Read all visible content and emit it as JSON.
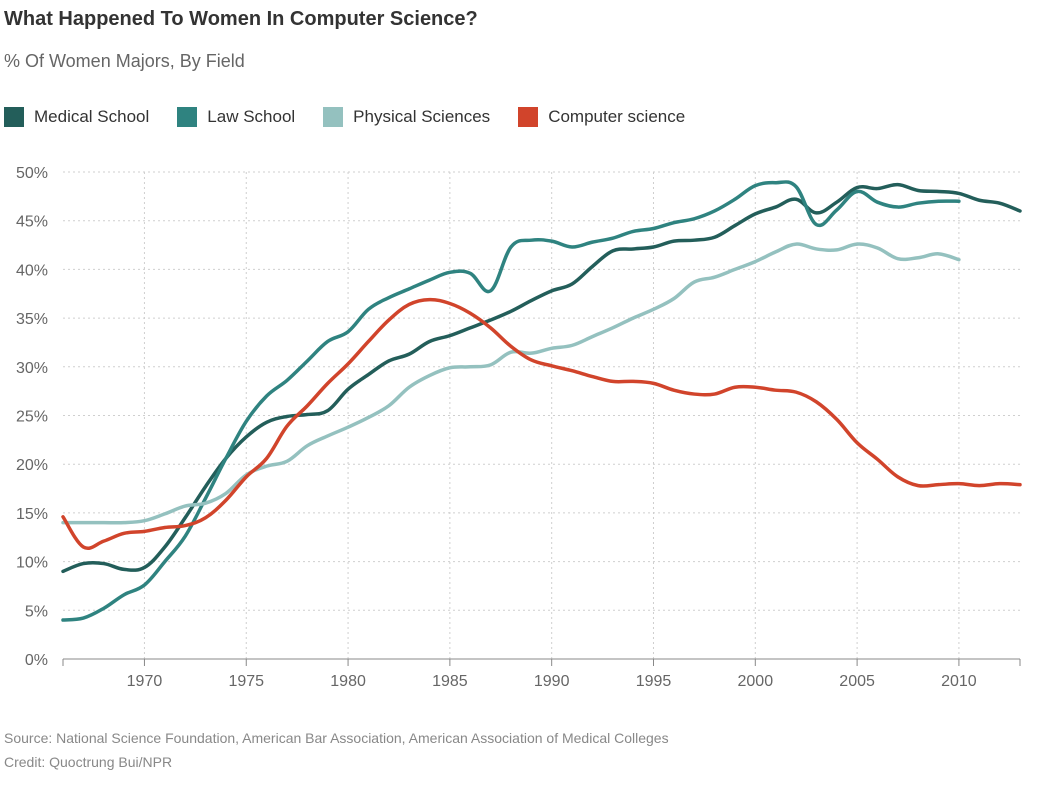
{
  "chart_data": {
    "type": "line",
    "title": "What Happened To Women In Computer Science?",
    "subtitle": "% Of Women Majors, By Field",
    "xlim": [
      1966,
      2013
    ],
    "ylim": [
      0,
      50
    ],
    "x_ticks": [
      1970,
      1975,
      1980,
      1985,
      1990,
      1995,
      2000,
      2005,
      2010
    ],
    "y_ticks": [
      0,
      5,
      10,
      15,
      20,
      25,
      30,
      35,
      40,
      45,
      50
    ],
    "y_tick_labels": [
      "0%",
      "5%",
      "10%",
      "15%",
      "20%",
      "25%",
      "30%",
      "35%",
      "40%",
      "45%",
      "50%"
    ],
    "grid": true,
    "legend_position": "top-left",
    "series": [
      {
        "name": "Medical School",
        "color": "#235e5a",
        "x": [
          1966,
          1967,
          1968,
          1969,
          1970,
          1971,
          1972,
          1973,
          1974,
          1975,
          1976,
          1977,
          1978,
          1979,
          1980,
          1981,
          1982,
          1983,
          1984,
          1985,
          1986,
          1987,
          1988,
          1989,
          1990,
          1991,
          1992,
          1993,
          1994,
          1995,
          1996,
          1997,
          1998,
          1999,
          2000,
          2001,
          2002,
          2003,
          2004,
          2005,
          2006,
          2007,
          2008,
          2009,
          2010,
          2011,
          2012,
          2013
        ],
        "values": [
          9.0,
          9.8,
          9.8,
          9.2,
          9.4,
          11.5,
          14.5,
          17.7,
          20.6,
          22.8,
          24.3,
          24.9,
          25.1,
          25.5,
          27.7,
          29.2,
          30.6,
          31.3,
          32.6,
          33.2,
          34.0,
          34.8,
          35.7,
          36.8,
          37.8,
          38.5,
          40.3,
          41.9,
          42.1,
          42.3,
          42.9,
          43.0,
          43.3,
          44.5,
          45.7,
          46.4,
          47.2,
          45.8,
          46.9,
          48.4,
          48.3,
          48.7,
          48.1,
          48.0,
          47.8,
          47.1,
          46.8,
          46.0
        ]
      },
      {
        "name": "Law School",
        "color": "#2f8380",
        "x": [
          1966,
          1967,
          1968,
          1969,
          1970,
          1971,
          1972,
          1973,
          1974,
          1975,
          1976,
          1977,
          1978,
          1979,
          1980,
          1981,
          1982,
          1983,
          1984,
          1985,
          1986,
          1987,
          1988,
          1989,
          1990,
          1991,
          1992,
          1993,
          1994,
          1995,
          1996,
          1997,
          1998,
          1999,
          2000,
          2001,
          2002,
          2003,
          2004,
          2005,
          2006,
          2007,
          2008,
          2009,
          2010
        ],
        "values": [
          4.0,
          4.2,
          5.2,
          6.6,
          7.6,
          10.0,
          12.6,
          16.5,
          20.6,
          24.4,
          27.0,
          28.6,
          30.6,
          32.6,
          33.6,
          35.9,
          37.1,
          38.0,
          38.9,
          39.7,
          39.6,
          37.8,
          42.3,
          43.0,
          42.9,
          42.3,
          42.8,
          43.2,
          43.9,
          44.2,
          44.8,
          45.2,
          46.0,
          47.2,
          48.6,
          48.9,
          48.5,
          44.6,
          46.1,
          48.0,
          46.9,
          46.4,
          46.8,
          47.0,
          47.0
        ]
      },
      {
        "name": "Physical Sciences",
        "color": "#94c1bf",
        "x": [
          1966,
          1967,
          1968,
          1969,
          1970,
          1971,
          1972,
          1973,
          1974,
          1975,
          1976,
          1977,
          1978,
          1979,
          1980,
          1981,
          1982,
          1983,
          1984,
          1985,
          1986,
          1987,
          1988,
          1989,
          1990,
          1991,
          1992,
          1993,
          1994,
          1995,
          1996,
          1997,
          1998,
          1999,
          2000,
          2001,
          2002,
          2003,
          2004,
          2005,
          2006,
          2007,
          2008,
          2009,
          2010
        ],
        "values": [
          14.0,
          14.0,
          14.0,
          14.0,
          14.2,
          14.9,
          15.7,
          16.0,
          17.0,
          18.9,
          19.8,
          20.3,
          21.9,
          22.9,
          23.8,
          24.8,
          26.0,
          27.9,
          29.1,
          29.9,
          30.0,
          30.2,
          31.5,
          31.4,
          31.9,
          32.2,
          33.1,
          34.0,
          35.0,
          35.9,
          37.0,
          38.7,
          39.2,
          40.0,
          40.8,
          41.8,
          42.6,
          42.1,
          42.0,
          42.6,
          42.2,
          41.1,
          41.2,
          41.6,
          41.0
        ]
      },
      {
        "name": "Computer science",
        "color": "#d1442b",
        "x": [
          1966,
          1967,
          1968,
          1969,
          1970,
          1971,
          1972,
          1973,
          1974,
          1975,
          1976,
          1977,
          1978,
          1979,
          1980,
          1981,
          1982,
          1983,
          1984,
          1985,
          1986,
          1987,
          1988,
          1989,
          1990,
          1991,
          1992,
          1993,
          1994,
          1995,
          1996,
          1997,
          1998,
          1999,
          2000,
          2001,
          2002,
          2003,
          2004,
          2005,
          2006,
          2007,
          2008,
          2009,
          2010,
          2011,
          2012,
          2013
        ],
        "values": [
          14.6,
          11.5,
          12.1,
          12.9,
          13.1,
          13.5,
          13.7,
          14.5,
          16.3,
          18.7,
          20.6,
          23.9,
          26.0,
          28.3,
          30.3,
          32.6,
          34.8,
          36.4,
          36.9,
          36.5,
          35.5,
          34.0,
          32.1,
          30.7,
          30.1,
          29.6,
          29.0,
          28.5,
          28.5,
          28.3,
          27.6,
          27.2,
          27.2,
          27.9,
          27.9,
          27.6,
          27.4,
          26.4,
          24.6,
          22.2,
          20.5,
          18.7,
          17.8,
          17.9,
          18.0,
          17.8,
          18.0,
          17.9
        ]
      }
    ]
  },
  "footer": {
    "source": "Source: National Science Foundation, American Bar Association, American Association of Medical Colleges",
    "credit": "Credit: Quoctrung Bui/NPR"
  }
}
